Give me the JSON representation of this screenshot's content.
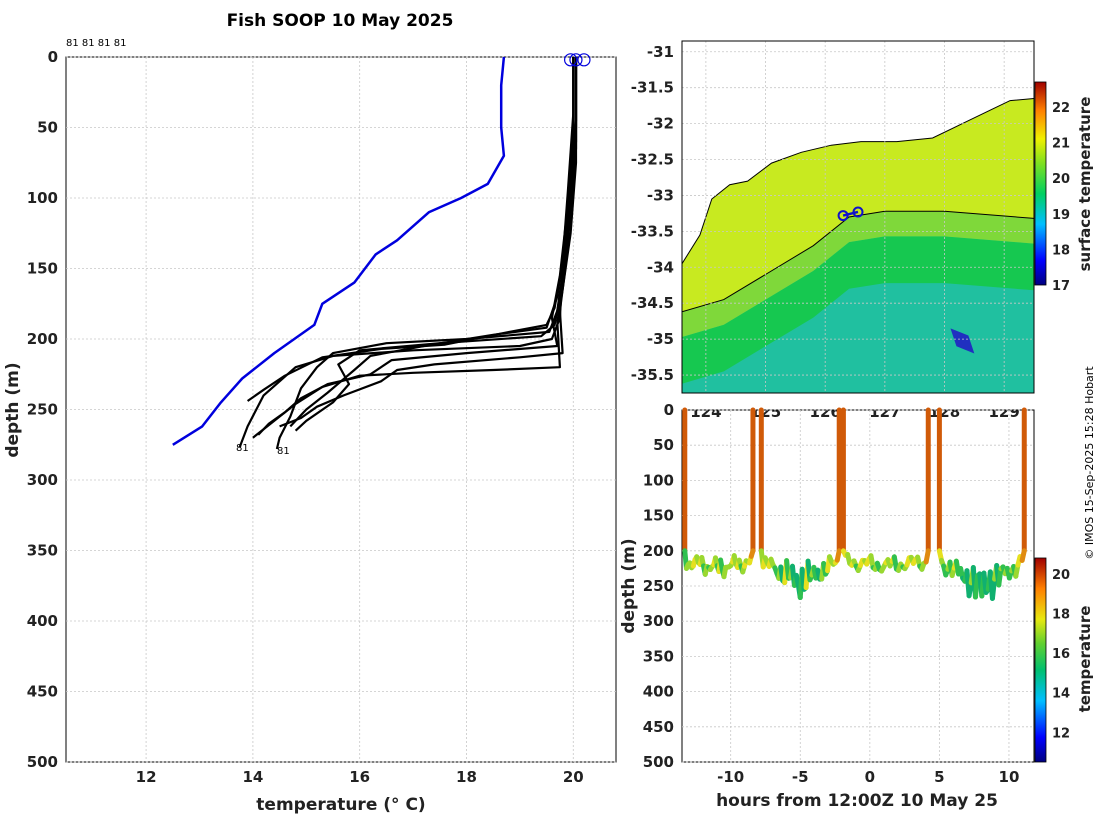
{
  "title": "Fish SOOP 10 May 2025",
  "credit": "© IMOS 15-Sep-2025 15:28 Hobart",
  "profile_labels_top": "81 81 81 81",
  "profile_label": "81",
  "chart_data": [
    {
      "type": "line",
      "name": "temperature-depth-profiles",
      "xlabel": "temperature (° C)",
      "ylabel": "depth (m)",
      "xlim": [
        10.5,
        20.8
      ],
      "ylim": [
        0,
        500
      ],
      "xticks": [
        12,
        14,
        16,
        18,
        20
      ],
      "yticks": [
        0,
        50,
        100,
        150,
        200,
        250,
        300,
        350,
        400,
        450,
        500
      ],
      "series": [
        {
          "name": "climatology",
          "color": "#0000dd",
          "points": [
            [
              18.7,
              0
            ],
            [
              18.65,
              20
            ],
            [
              18.65,
              50
            ],
            [
              18.7,
              70
            ],
            [
              18.4,
              90
            ],
            [
              17.9,
              100
            ],
            [
              17.3,
              110
            ],
            [
              16.7,
              130
            ],
            [
              16.3,
              140
            ],
            [
              15.9,
              160
            ],
            [
              15.3,
              175
            ],
            [
              15.15,
              190
            ],
            [
              14.4,
              210
            ],
            [
              13.8,
              228
            ],
            [
              13.4,
              245
            ],
            [
              13.05,
              262
            ],
            [
              12.5,
              275
            ]
          ]
        },
        {
          "name": "profile-a",
          "color": "#000000",
          "points": [
            [
              20.05,
              0
            ],
            [
              20.05,
              50
            ],
            [
              20.0,
              80
            ],
            [
              19.9,
              110
            ],
            [
              19.8,
              150
            ],
            [
              19.75,
              185
            ],
            [
              19.6,
              200
            ],
            [
              19.0,
              205
            ],
            [
              17.0,
              208
            ],
            [
              15.5,
              212
            ],
            [
              14.8,
              220
            ],
            [
              14.2,
              240
            ],
            [
              13.9,
              262
            ],
            [
              13.75,
              277
            ]
          ]
        },
        {
          "name": "profile-b",
          "color": "#000000",
          "points": [
            [
              20.05,
              0
            ],
            [
              20.05,
              60
            ],
            [
              19.95,
              100
            ],
            [
              19.85,
              140
            ],
            [
              19.7,
              180
            ],
            [
              19.55,
              195
            ],
            [
              18.0,
              200
            ],
            [
              16.5,
              203
            ],
            [
              15.5,
              210
            ],
            [
              15.2,
              220
            ],
            [
              14.9,
              235
            ],
            [
              14.7,
              255
            ],
            [
              14.5,
              270
            ],
            [
              14.45,
              278
            ]
          ]
        },
        {
          "name": "profile-c",
          "color": "#000000",
          "points": [
            [
              20.0,
              0
            ],
            [
              20.0,
              70
            ],
            [
              19.9,
              120
            ],
            [
              19.8,
              160
            ],
            [
              19.65,
              190
            ],
            [
              19.4,
              198
            ],
            [
              17.5,
              203
            ],
            [
              16.0,
              208
            ],
            [
              15.6,
              218
            ],
            [
              15.8,
              232
            ],
            [
              15.5,
              245
            ],
            [
              15.0,
              258
            ],
            [
              14.8,
              265
            ]
          ]
        },
        {
          "name": "profile-d",
          "color": "#000000",
          "points": [
            [
              20.05,
              0
            ],
            [
              20.05,
              45
            ],
            [
              19.95,
              90
            ],
            [
              19.85,
              130
            ],
            [
              19.7,
              170
            ],
            [
              19.5,
              192
            ],
            [
              18.5,
              197
            ],
            [
              17.2,
              205
            ],
            [
              16.2,
              212
            ],
            [
              15.9,
              222
            ],
            [
              15.4,
              238
            ],
            [
              15.0,
              250
            ],
            [
              14.7,
              262
            ]
          ]
        },
        {
          "name": "profile-e",
          "color": "#000000",
          "points": [
            [
              20.0,
              0
            ],
            [
              20.0,
              55
            ],
            [
              19.9,
              105
            ],
            [
              19.75,
              155
            ],
            [
              19.6,
              185
            ],
            [
              19.7,
              205
            ],
            [
              18.0,
              210
            ],
            [
              16.6,
              215
            ],
            [
              16.2,
              225
            ],
            [
              15.4,
              232
            ],
            [
              14.9,
              242
            ],
            [
              14.6,
              252
            ],
            [
              14.3,
              260
            ],
            [
              14.1,
              268
            ]
          ]
        },
        {
          "name": "profile-f",
          "color": "#000000",
          "points": [
            [
              20.05,
              0
            ],
            [
              20.05,
              65
            ],
            [
              19.95,
              110
            ],
            [
              19.85,
              150
            ],
            [
              19.75,
              180
            ],
            [
              19.8,
              210
            ],
            [
              19.0,
              213
            ],
            [
              17.4,
              218
            ],
            [
              16.7,
              222
            ],
            [
              16.4,
              230
            ],
            [
              15.7,
              240
            ],
            [
              15.2,
              248
            ],
            [
              14.9,
              256
            ],
            [
              14.5,
              262
            ]
          ]
        },
        {
          "name": "profile-g",
          "color": "#000000",
          "points": [
            [
              20.0,
              0
            ],
            [
              20.0,
              40
            ],
            [
              19.9,
              95
            ],
            [
              19.8,
              145
            ],
            [
              19.65,
              178
            ],
            [
              19.5,
              190
            ],
            [
              18.8,
              195
            ],
            [
              17.6,
              204
            ],
            [
              16.4,
              207
            ],
            [
              15.3,
              213
            ],
            [
              14.6,
              226
            ],
            [
              14.2,
              236
            ],
            [
              13.9,
              244
            ]
          ]
        },
        {
          "name": "profile-h",
          "color": "#000000",
          "points": [
            [
              20.05,
              0
            ],
            [
              20.05,
              75
            ],
            [
              19.95,
              125
            ],
            [
              19.8,
              165
            ],
            [
              19.7,
              188
            ],
            [
              19.75,
              220
            ],
            [
              18.5,
              222
            ],
            [
              17.0,
              224
            ],
            [
              16.0,
              226
            ],
            [
              15.3,
              234
            ],
            [
              14.8,
              246
            ],
            [
              14.4,
              258
            ],
            [
              14.0,
              270
            ]
          ]
        }
      ],
      "surface_markers": [
        [
          19.95,
          2
        ],
        [
          20.05,
          2
        ],
        [
          20.2,
          2
        ]
      ]
    },
    {
      "type": "heatmap",
      "name": "surface-temperature-map",
      "colorbar_label": "surface temperature",
      "colorbar_range": [
        17,
        22.7
      ],
      "colorbar_ticks": [
        17,
        18,
        19,
        20,
        21,
        22
      ],
      "yticks": [
        -31,
        -31.5,
        -32,
        -32.5,
        -33,
        -33.5,
        -34,
        -34.5,
        -35,
        -35.5
      ],
      "xticks": [
        124,
        125,
        126,
        127,
        128,
        129
      ],
      "xlim": [
        123.6,
        129.5
      ],
      "ylim": [
        -35.75,
        -30.85
      ],
      "coastline": [
        [
          123.6,
          -33.95
        ],
        [
          123.9,
          -33.55
        ],
        [
          124.1,
          -33.05
        ],
        [
          124.4,
          -32.85
        ],
        [
          124.7,
          -32.8
        ],
        [
          125.1,
          -32.55
        ],
        [
          125.6,
          -32.4
        ],
        [
          126.1,
          -32.3
        ],
        [
          126.6,
          -32.25
        ],
        [
          127.2,
          -32.25
        ],
        [
          127.8,
          -32.2
        ],
        [
          128.3,
          -32.0
        ],
        [
          128.8,
          -31.8
        ],
        [
          129.1,
          -31.68
        ],
        [
          129.5,
          -31.65
        ]
      ],
      "track_points": [
        [
          126.3,
          -33.28
        ],
        [
          126.55,
          -33.23
        ]
      ],
      "isotherm": [
        [
          123.6,
          -34.62
        ],
        [
          124.3,
          -34.45
        ],
        [
          125.0,
          -34.1
        ],
        [
          125.8,
          -33.7
        ],
        [
          126.4,
          -33.3
        ],
        [
          127.0,
          -33.22
        ],
        [
          128.0,
          -33.22
        ],
        [
          129.5,
          -33.32
        ]
      ]
    },
    {
      "type": "scatter",
      "name": "depth-time-temperature",
      "xlabel": "hours from 12:00Z 10 May 25",
      "ylabel": "depth (m)",
      "xlim": [
        -13.5,
        11.8
      ],
      "ylim": [
        0,
        500
      ],
      "xticks": [
        -10,
        -5,
        0,
        5,
        10
      ],
      "xtick_labels": [
        "-10",
        "-5",
        "0",
        "5",
        "10"
      ],
      "yticks": [
        0,
        50,
        100,
        150,
        200,
        250,
        300,
        350,
        400,
        450,
        500
      ],
      "colorbar_label": "temperature",
      "colorbar_range": [
        10.5,
        20.8
      ],
      "colorbar_ticks": [
        12,
        14,
        16,
        18,
        20
      ],
      "dives": [
        {
          "t0": -13.3,
          "t1": -8.4,
          "bottom_depth": 240
        },
        {
          "t0": -7.8,
          "t1": -2.2,
          "bottom_depth": 275
        },
        {
          "t0": -1.9,
          "t1": 4.2,
          "bottom_depth": 235
        },
        {
          "t0": 5.0,
          "t1": 11.1,
          "bottom_depth": 285
        }
      ]
    }
  ]
}
